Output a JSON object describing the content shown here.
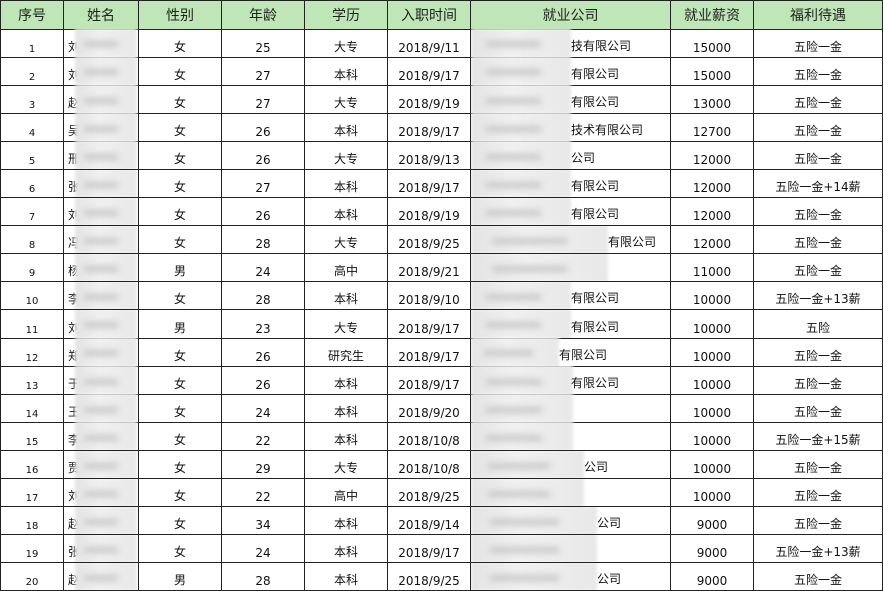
{
  "headers": [
    "序号",
    "姓名",
    "性别",
    "年龄",
    "学历",
    "入职时间",
    "就业公司",
    "就业薪资",
    "福利待遇"
  ],
  "header_bg": "#bfe6b6",
  "rows": [
    {
      "no": "1",
      "name": "刘",
      "gender": "女",
      "age": "25",
      "edu": "大专",
      "date": "2018/9/11",
      "company": "技有限公司",
      "salary": "15000",
      "welfare": "五险一金"
    },
    {
      "no": "2",
      "name": "刘",
      "gender": "女",
      "age": "27",
      "edu": "本科",
      "date": "2018/9/17",
      "company": "有限公司",
      "salary": "15000",
      "welfare": "五险一金"
    },
    {
      "no": "3",
      "name": "赵",
      "gender": "女",
      "age": "27",
      "edu": "大专",
      "date": "2018/9/19",
      "company": "有限公司",
      "salary": "13000",
      "welfare": "五险一金"
    },
    {
      "no": "4",
      "name": "吴",
      "gender": "女",
      "age": "26",
      "edu": "本科",
      "date": "2018/9/17",
      "company": "技术有限公司",
      "salary": "12700",
      "welfare": "五险一金"
    },
    {
      "no": "5",
      "name": "邢",
      "gender": "女",
      "age": "26",
      "edu": "大专",
      "date": "2018/9/13",
      "company": "公司",
      "salary": "12000",
      "welfare": "五险一金"
    },
    {
      "no": "6",
      "name": "张",
      "gender": "女",
      "age": "27",
      "edu": "本科",
      "date": "2018/9/17",
      "company": "有限公司",
      "salary": "12000",
      "welfare": "五险一金+14薪"
    },
    {
      "no": "7",
      "name": "刘",
      "gender": "女",
      "age": "26",
      "edu": "本科",
      "date": "2018/9/19",
      "company": "有限公司",
      "salary": "12000",
      "welfare": "五险一金"
    },
    {
      "no": "8",
      "name": "冯",
      "gender": "女",
      "age": "28",
      "edu": "大专",
      "date": "2018/9/25",
      "company": "有限公司",
      "salary": "12000",
      "welfare": "五险一金"
    },
    {
      "no": "9",
      "name": "杨",
      "gender": "男",
      "age": "24",
      "edu": "高中",
      "date": "2018/9/21",
      "company": "",
      "salary": "11000",
      "welfare": "五险一金"
    },
    {
      "no": "10",
      "name": "李",
      "gender": "女",
      "age": "28",
      "edu": "本科",
      "date": "2018/9/10",
      "company": "有限公司",
      "salary": "10000",
      "welfare": "五险一金+13薪"
    },
    {
      "no": "11",
      "name": "刘",
      "gender": "男",
      "age": "23",
      "edu": "大专",
      "date": "2018/9/17",
      "company": "有限公司",
      "salary": "10000",
      "welfare": "五险"
    },
    {
      "no": "12",
      "name": "郑",
      "gender": "女",
      "age": "26",
      "edu": "研究生",
      "date": "2018/9/17",
      "company": "有限公司",
      "salary": "10000",
      "welfare": "五险一金"
    },
    {
      "no": "13",
      "name": "于",
      "gender": "女",
      "age": "26",
      "edu": "本科",
      "date": "2018/9/17",
      "company": "有限公司",
      "salary": "10000",
      "welfare": "五险一金"
    },
    {
      "no": "14",
      "name": "王",
      "gender": "女",
      "age": "24",
      "edu": "本科",
      "date": "2018/9/20",
      "company": "",
      "salary": "10000",
      "welfare": "五险一金"
    },
    {
      "no": "15",
      "name": "李",
      "gender": "女",
      "age": "22",
      "edu": "本科",
      "date": "2018/10/8",
      "company": "",
      "salary": "10000",
      "welfare": "五险一金+15薪"
    },
    {
      "no": "16",
      "name": "贾",
      "gender": "女",
      "age": "29",
      "edu": "大专",
      "date": "2018/10/8",
      "company": "公司",
      "salary": "10000",
      "welfare": "五险一金"
    },
    {
      "no": "17",
      "name": "刘",
      "gender": "女",
      "age": "22",
      "edu": "高中",
      "date": "2018/9/25",
      "company": "",
      "salary": "10000",
      "welfare": "五险一金"
    },
    {
      "no": "18",
      "name": "赵",
      "gender": "女",
      "age": "34",
      "edu": "本科",
      "date": "2018/9/14",
      "company": "公司",
      "salary": "9000",
      "welfare": "五险一金"
    },
    {
      "no": "19",
      "name": "张",
      "gender": "女",
      "age": "24",
      "edu": "本科",
      "date": "2018/9/17",
      "company": "",
      "salary": "9000",
      "welfare": "五险一金+13薪"
    },
    {
      "no": "20",
      "name": "赵",
      "gender": "男",
      "age": "28",
      "edu": "本科",
      "date": "2018/9/25",
      "company": "公司",
      "salary": "9000",
      "welfare": "五险一金"
    }
  ]
}
